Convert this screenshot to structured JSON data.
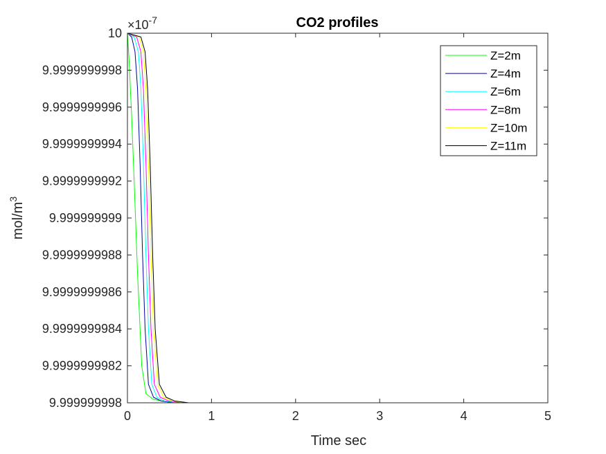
{
  "chart_data": {
    "type": "line",
    "title": "CO2 profiles",
    "xlabel": "Time sec",
    "ylabel": "mol/m",
    "ylabel_superscript": "3",
    "xlim": [
      0,
      5
    ],
    "ylim": [
      9.999999998,
      10
    ],
    "x_ticks": [
      "0",
      "1",
      "2",
      "3",
      "4",
      "5"
    ],
    "y_ticks": [
      "9.999999998",
      "9.9999999982",
      "9.9999999984",
      "9.9999999986",
      "9.9999999988",
      "9.999999999",
      "9.9999999992",
      "9.9999999994",
      "9.9999999996",
      "9.9999999998",
      "10"
    ],
    "y_exponent_base": "×10",
    "y_exponent_power": "-7",
    "grid": false,
    "legend_position": "top-right",
    "series": [
      {
        "name": "Z=2m",
        "color": "#00ff00",
        "x": [
          0,
          0.02,
          0.05,
          0.08,
          0.12,
          0.17,
          0.22,
          0.3,
          0.4,
          0.6,
          1.0,
          5.0
        ],
        "y": [
          10,
          9.99999999985,
          9.99999999955,
          9.9999999992,
          9.9999999987,
          9.9999999982,
          9.99999999805,
          9.99999999802,
          9.99999999801,
          9.999999998,
          9.999999998,
          9.999999998
        ]
      },
      {
        "name": "Z=4m",
        "color": "#0000a0",
        "x": [
          0,
          0.05,
          0.09,
          0.12,
          0.15,
          0.18,
          0.21,
          0.25,
          0.31,
          0.4,
          0.55,
          0.8,
          5.0
        ],
        "y": [
          10,
          9.99999999998,
          9.9999999999,
          9.9999999997,
          9.9999999993,
          9.9999999988,
          9.9999999984,
          9.9999999981,
          9.99999999803,
          9.99999999801,
          9.999999998,
          9.999999998,
          9.999999998
        ]
      },
      {
        "name": "Z=6m",
        "color": "#00ffff",
        "x": [
          0,
          0.08,
          0.13,
          0.16,
          0.19,
          0.22,
          0.25,
          0.29,
          0.35,
          0.44,
          0.6,
          0.85,
          5.0
        ],
        "y": [
          10,
          9.99999999998,
          9.9999999999,
          9.9999999997,
          9.9999999993,
          9.9999999988,
          9.9999999984,
          9.9999999981,
          9.99999999803,
          9.99999999801,
          9.999999998,
          9.999999998,
          9.999999998
        ]
      },
      {
        "name": "Z=8m",
        "color": "#ff00ff",
        "x": [
          0,
          0.11,
          0.16,
          0.19,
          0.22,
          0.25,
          0.28,
          0.32,
          0.39,
          0.49,
          0.65,
          0.9,
          5.0
        ],
        "y": [
          10,
          9.99999999998,
          9.9999999999,
          9.9999999997,
          9.9999999993,
          9.9999999988,
          9.9999999984,
          9.9999999981,
          9.99999999803,
          9.99999999801,
          9.999999998,
          9.999999998,
          9.999999998
        ]
      },
      {
        "name": "Z=10m",
        "color": "#ffff00",
        "x": [
          0,
          0.14,
          0.19,
          0.22,
          0.25,
          0.28,
          0.31,
          0.36,
          0.43,
          0.53,
          0.7,
          0.95,
          5.0
        ],
        "y": [
          10,
          9.99999999998,
          9.9999999999,
          9.9999999997,
          9.9999999993,
          9.9999999988,
          9.9999999984,
          9.9999999981,
          9.99999999803,
          9.99999999801,
          9.999999998,
          9.999999998,
          9.999999998
        ]
      },
      {
        "name": "Z=11m",
        "color": "#000000",
        "x": [
          0,
          0.16,
          0.21,
          0.24,
          0.27,
          0.3,
          0.33,
          0.38,
          0.46,
          0.56,
          0.73,
          1.0,
          5.0
        ],
        "y": [
          10,
          9.99999999998,
          9.9999999999,
          9.9999999997,
          9.9999999993,
          9.9999999988,
          9.9999999984,
          9.9999999981,
          9.99999999803,
          9.99999999801,
          9.999999998,
          9.999999998,
          9.999999998
        ]
      }
    ]
  }
}
